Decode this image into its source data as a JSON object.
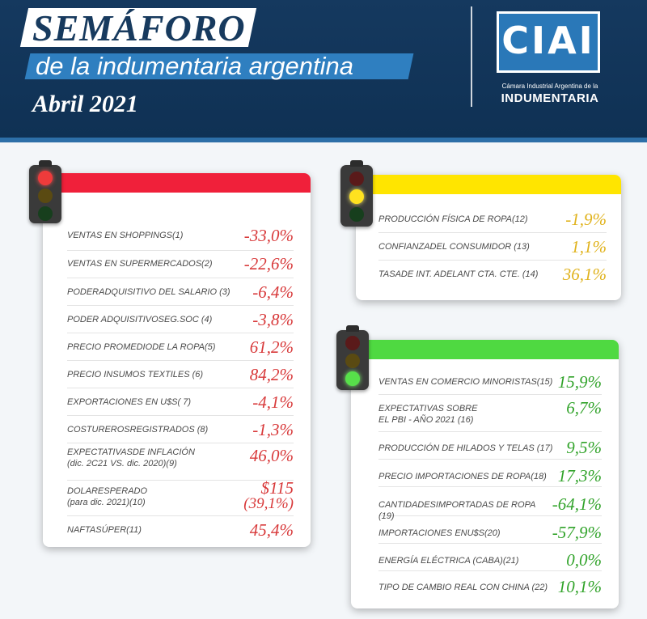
{
  "header": {
    "title": "SEMÁFORO",
    "subtitle": "de la indumentaria argentina",
    "date": "Abril 2021"
  },
  "logo": {
    "mark": "CIAI",
    "caption": "Cámara Industrial Argentina de la",
    "name": "INDUMENTARIA"
  },
  "colors": {
    "red": "#f0203a",
    "yellow": "#ffe500",
    "green": "#4fd941",
    "navy": "#15395f"
  },
  "red_panel": {
    "items": [
      {
        "label": "VENTAS EN SHOPPINGS(1)",
        "value": "-33,0%"
      },
      {
        "label": "VENTAS EN SUPERMERCADOS(2)",
        "value": "-22,6%"
      },
      {
        "label": "PODERADQUISITIVO DEL SALARIO (3)",
        "value": "-6,4%"
      },
      {
        "label": "PODER ADQUISITIVOSEG.SOC (4)",
        "value": "-3,8%"
      },
      {
        "label": "PRECIO PROMEDIODE LA ROPA(5)",
        "value": "61,2%"
      },
      {
        "label": "PRECIO INSUMOS TEXTILES (6)",
        "value": "84,2%"
      },
      {
        "label": "EXPORTACIONES EN U$S( 7)",
        "value": "-4,1%"
      },
      {
        "label": "COSTUREROSREGISTRADOS (8)",
        "value": "-1,3%"
      },
      {
        "label": "EXPECTATIVASDE INFLACIÓN",
        "label2": "(dic. 2C21 VS. dic. 2020)(9)",
        "value": "46,0%"
      },
      {
        "label": "DOLARESPERADO",
        "label2": "(para dic. 2021)(10)",
        "value": "$115",
        "value2": "(39,1%)"
      },
      {
        "label": "NAFTASÚPER(11)",
        "value": "45,4%"
      }
    ]
  },
  "yellow_panel": {
    "items": [
      {
        "label": "PRODUCCIÓN FÍSICA DE ROPA(12)",
        "value": "-1,9%"
      },
      {
        "label": "CONFIANZADEL CONSUMIDOR (13)",
        "value": "1,1%"
      },
      {
        "label": "TASADE INT. ADELANT CTA. CTE. (14)",
        "value": "36,1%"
      }
    ]
  },
  "green_panel": {
    "items": [
      {
        "label": "VENTAS EN COMERCIO MINORISTAS(15)",
        "value": "15,9%"
      },
      {
        "label": "EXPECTATIVAS SOBRE",
        "label2": "EL PBI - AÑO 2021 (16)",
        "value": "6,7%"
      },
      {
        "label": "PRODUCCIÓN DE HILADOS Y TELAS (17)",
        "value": "9,5%"
      },
      {
        "label": "PRECIO IMPORTACIONES DE ROPA(18)",
        "value": "17,3%"
      },
      {
        "label": "CANTIDADESIMPORTADAS DE ROPA (19)",
        "value": "-64,1%"
      },
      {
        "label": "IMPORTACIONES ENU$S(20)",
        "value": "-57,9%"
      },
      {
        "label": "ENERGÍA ELÉCTRICA (CABA)(21)",
        "value": "0,0%"
      },
      {
        "label": "TIPO DE CAMBIO REAL CON CHINA (22)",
        "value": "10,1%"
      }
    ]
  }
}
